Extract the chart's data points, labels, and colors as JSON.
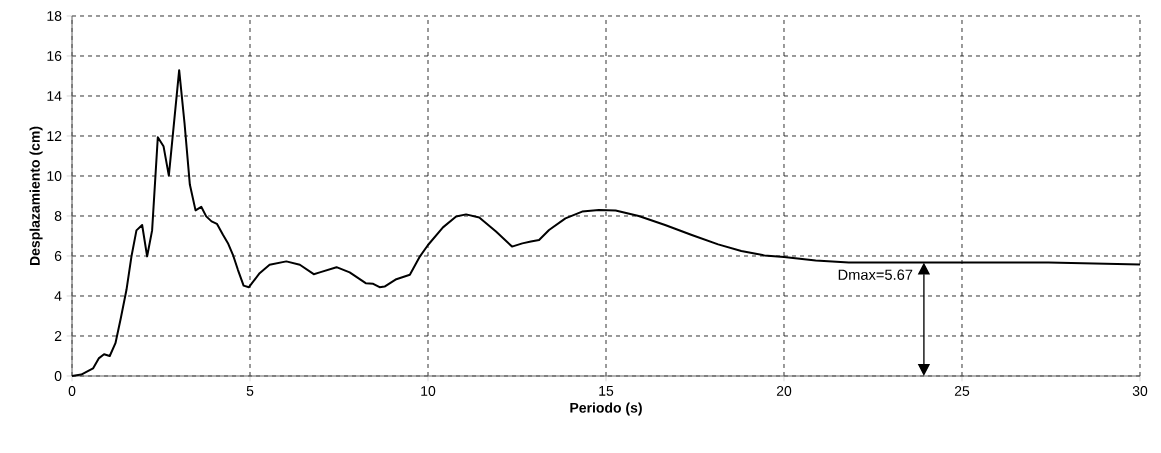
{
  "chart_data": {
    "type": "line",
    "xlabel": "Periodo (s)",
    "ylabel": "Desplazamiento (cm)",
    "xlim": [
      0,
      30
    ],
    "ylim": [
      0,
      18
    ],
    "xticks": [
      0,
      5,
      10,
      15,
      20,
      25,
      30
    ],
    "yticks": [
      0,
      2,
      4,
      6,
      8,
      10,
      12,
      14,
      16,
      18
    ],
    "grid": true,
    "marker": "none",
    "line_style": "solid",
    "series": [
      {
        "color": "#000000",
        "x": [
          0,
          0.26,
          0.59,
          0.75,
          0.9,
          1.06,
          1.22,
          1.37,
          1.53,
          1.67,
          1.81,
          1.97,
          2.11,
          2.25,
          2.41,
          2.57,
          2.72,
          3.01,
          3.16,
          3.31,
          3.47,
          3.63,
          3.77,
          3.92,
          4.07,
          4.24,
          4.38,
          4.52,
          4.66,
          4.82,
          4.97,
          5.27,
          5.55,
          6.02,
          6.4,
          6.79,
          6.96,
          7.43,
          7.8,
          8.25,
          8.46,
          8.64,
          8.78,
          9.11,
          9.49,
          9.77,
          10.0,
          10.42,
          10.79,
          11.07,
          11.44,
          11.91,
          12.36,
          12.65,
          12.89,
          13.12,
          13.4,
          13.86,
          14.33,
          14.8,
          15.27,
          15.92,
          16.66,
          17.41,
          18.15,
          18.8,
          19.45,
          20.0,
          20.89,
          21.82,
          23.93,
          25.0,
          27.43,
          30.0
        ],
        "values": [
          0,
          0.07,
          0.38,
          0.88,
          1.09,
          1.0,
          1.64,
          2.89,
          4.31,
          5.98,
          7.28,
          7.55,
          5.98,
          7.28,
          11.94,
          11.49,
          10.02,
          15.29,
          12.65,
          9.57,
          8.28,
          8.46,
          7.98,
          7.73,
          7.61,
          7.06,
          6.64,
          6.06,
          5.31,
          4.52,
          4.44,
          5.14,
          5.56,
          5.73,
          5.56,
          5.09,
          5.18,
          5.44,
          5.18,
          4.64,
          4.61,
          4.44,
          4.47,
          4.84,
          5.06,
          5.97,
          6.55,
          7.43,
          7.97,
          8.08,
          7.92,
          7.22,
          6.47,
          6.63,
          6.72,
          6.8,
          7.3,
          7.88,
          8.22,
          8.3,
          8.27,
          8.0,
          7.55,
          7.05,
          6.58,
          6.25,
          6.03,
          5.95,
          5.77,
          5.67,
          5.67,
          5.67,
          5.67,
          5.58
        ]
      }
    ],
    "annotations": [
      {
        "text": "Dmax=5.67",
        "x": 23.93,
        "y": 5.67
      }
    ]
  }
}
